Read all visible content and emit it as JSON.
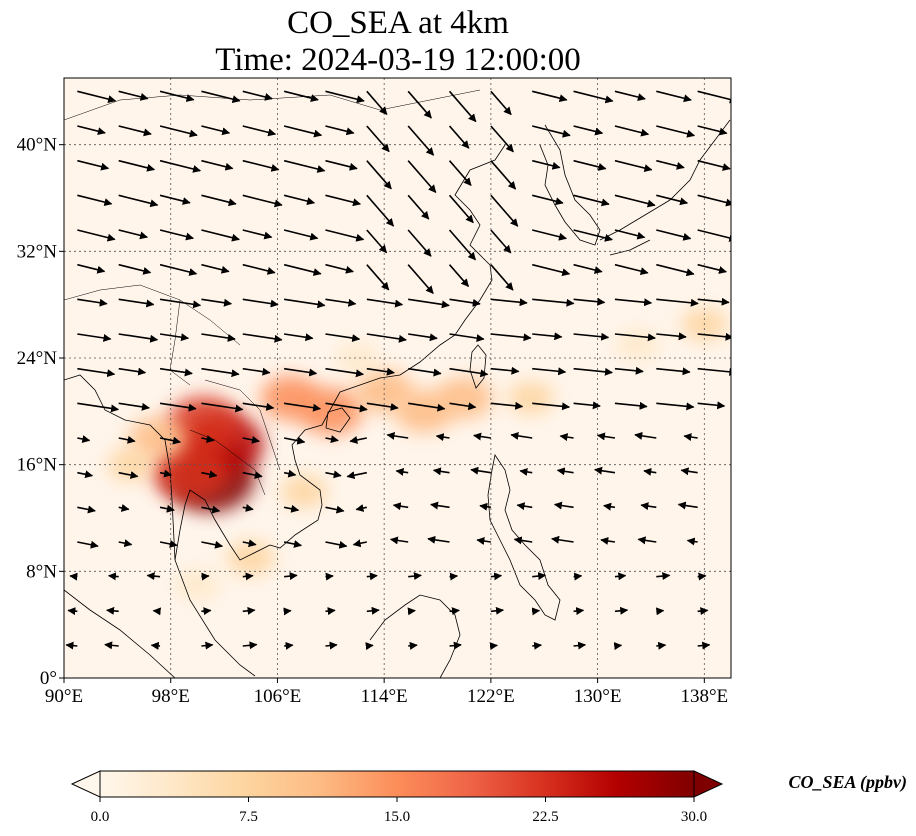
{
  "title_line1": "CO_SEA at 4km",
  "title_line2": "Time: 2024-03-19 12:00:00",
  "map": {
    "lon_range": [
      90,
      140
    ],
    "lat_range": [
      0,
      45
    ],
    "lon_ticks": [
      {
        "value": 90,
        "label": "90°E"
      },
      {
        "value": 98,
        "label": "98°E"
      },
      {
        "value": 106,
        "label": "106°E"
      },
      {
        "value": 114,
        "label": "114°E"
      },
      {
        "value": 122,
        "label": "122°E"
      },
      {
        "value": 130,
        "label": "130°E"
      },
      {
        "value": 138,
        "label": "138°E"
      }
    ],
    "lat_ticks": [
      {
        "value": 0,
        "label": "0°"
      },
      {
        "value": 8,
        "label": "8°N"
      },
      {
        "value": 16,
        "label": "16°N"
      },
      {
        "value": 24,
        "label": "24°N"
      },
      {
        "value": 32,
        "label": "32°N"
      },
      {
        "value": 40,
        "label": "40°N"
      }
    ],
    "gridlines": true,
    "background_color": "#fff5eb"
  },
  "colorbar": {
    "label": "CO_SEA (ppbv)",
    "min": 0.0,
    "max": 30.0,
    "ticks": [
      "0.0",
      "7.5",
      "15.0",
      "22.5",
      "30.0"
    ],
    "extend": "both",
    "colormap": "OrRd",
    "colors": [
      "#fff7ec",
      "#fee8c8",
      "#fdd49e",
      "#fdbb84",
      "#fc8d59",
      "#ef6548",
      "#d7301f",
      "#b30000",
      "#7f0000"
    ]
  },
  "plumes": [
    {
      "lon": 101,
      "lat": 15,
      "value": 30
    },
    {
      "lon": 102,
      "lat": 17.5,
      "value": 25
    },
    {
      "lon": 100.5,
      "lat": 19,
      "value": 22
    },
    {
      "lon": 99.5,
      "lat": 15.5,
      "value": 24
    },
    {
      "lon": 107,
      "lat": 21,
      "value": 14
    },
    {
      "lon": 110,
      "lat": 20,
      "value": 16
    },
    {
      "lon": 114,
      "lat": 21.5,
      "value": 13
    },
    {
      "lon": 117,
      "lat": 20,
      "value": 13
    },
    {
      "lon": 120,
      "lat": 21,
      "value": 12
    },
    {
      "lon": 97,
      "lat": 18,
      "value": 12
    },
    {
      "lon": 95,
      "lat": 16,
      "value": 6
    },
    {
      "lon": 125,
      "lat": 21,
      "value": 6
    },
    {
      "lon": 133,
      "lat": 25,
      "value": 5
    },
    {
      "lon": 138,
      "lat": 26.5,
      "value": 6
    },
    {
      "lon": 104,
      "lat": 9,
      "value": 7
    },
    {
      "lon": 100,
      "lat": 7,
      "value": 5
    },
    {
      "lon": 108,
      "lat": 14,
      "value": 6
    },
    {
      "lon": 112,
      "lat": 24,
      "value": 4
    }
  ]
}
